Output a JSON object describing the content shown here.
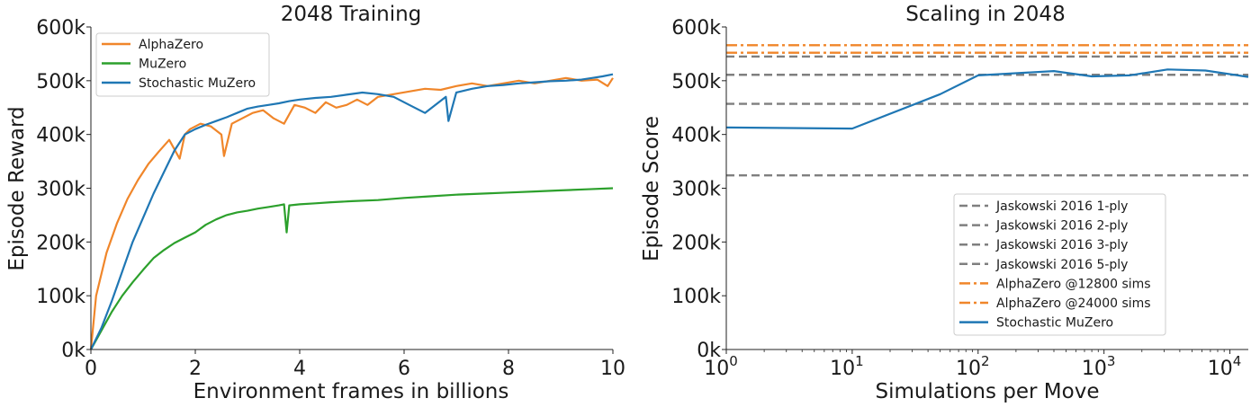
{
  "chart_data": [
    {
      "type": "line",
      "title": "2048 Training",
      "xlabel": "Environment frames in billions",
      "ylabel": "Episode Reward",
      "xlim": [
        0,
        10
      ],
      "ylim": [
        0,
        600000
      ],
      "xticks": [
        0,
        2,
        4,
        6,
        8,
        10
      ],
      "xtick_labels": [
        "0",
        "2",
        "4",
        "6",
        "8",
        "10"
      ],
      "yticks": [
        0,
        100000,
        200000,
        300000,
        400000,
        500000,
        600000
      ],
      "ytick_labels": [
        "0k",
        "100k",
        "200k",
        "300k",
        "400k",
        "500k",
        "600k"
      ],
      "legend": "top-left",
      "grid": false,
      "series": [
        {
          "name": "AlphaZero",
          "color": "#f0862a",
          "x": [
            0,
            0.1,
            0.2,
            0.3,
            0.5,
            0.7,
            0.9,
            1.1,
            1.3,
            1.5,
            1.7,
            1.8,
            1.9,
            2.1,
            2.3,
            2.5,
            2.55,
            2.7,
            2.9,
            3.1,
            3.3,
            3.5,
            3.7,
            3.9,
            4.1,
            4.3,
            4.5,
            4.7,
            4.9,
            5.1,
            5.3,
            5.5,
            5.8,
            6.1,
            6.4,
            6.7,
            7.0,
            7.3,
            7.6,
            7.9,
            8.2,
            8.5,
            8.8,
            9.1,
            9.4,
            9.7,
            9.9,
            10
          ],
          "y": [
            0,
            100000,
            140000,
            180000,
            235000,
            280000,
            315000,
            345000,
            368000,
            390000,
            355000,
            400000,
            410000,
            420000,
            415000,
            400000,
            360000,
            420000,
            430000,
            440000,
            445000,
            430000,
            420000,
            455000,
            450000,
            440000,
            460000,
            450000,
            455000,
            465000,
            455000,
            470000,
            475000,
            480000,
            485000,
            483000,
            490000,
            495000,
            490000,
            495000,
            500000,
            495000,
            500000,
            505000,
            500000,
            502000,
            490000,
            505000
          ]
        },
        {
          "name": "MuZero",
          "color": "#2ca02c",
          "x": [
            0,
            0.2,
            0.4,
            0.6,
            0.8,
            1.0,
            1.2,
            1.4,
            1.6,
            1.8,
            2.0,
            2.2,
            2.4,
            2.6,
            2.8,
            3.0,
            3.2,
            3.4,
            3.6,
            3.7,
            3.75,
            3.8,
            4.0,
            4.3,
            4.6,
            5.0,
            5.5,
            6.0,
            6.5,
            7.0,
            7.5,
            8.0,
            8.5,
            9.0,
            9.5,
            10
          ],
          "y": [
            0,
            35000,
            70000,
            100000,
            125000,
            148000,
            170000,
            185000,
            198000,
            208000,
            218000,
            232000,
            242000,
            250000,
            255000,
            258000,
            262000,
            265000,
            268000,
            270000,
            218000,
            268000,
            270000,
            272000,
            274000,
            276000,
            278000,
            282000,
            285000,
            288000,
            290000,
            292000,
            294000,
            296000,
            298000,
            300000
          ]
        },
        {
          "name": "Stochastic MuZero",
          "color": "#1f77b4",
          "x": [
            0,
            0.2,
            0.4,
            0.6,
            0.8,
            1.0,
            1.2,
            1.4,
            1.6,
            1.8,
            2.0,
            2.2,
            2.4,
            2.6,
            2.8,
            3.0,
            3.2,
            3.4,
            3.6,
            3.8,
            4.0,
            4.3,
            4.6,
            4.9,
            5.2,
            5.5,
            5.8,
            6.1,
            6.4,
            6.6,
            6.8,
            6.85,
            7.0,
            7.3,
            7.6,
            7.9,
            8.2,
            8.5,
            8.8,
            9.1,
            9.4,
            9.6,
            9.8,
            10
          ],
          "y": [
            0,
            40000,
            90000,
            145000,
            200000,
            245000,
            290000,
            330000,
            370000,
            400000,
            410000,
            418000,
            425000,
            432000,
            440000,
            448000,
            452000,
            455000,
            458000,
            462000,
            465000,
            468000,
            470000,
            474000,
            478000,
            475000,
            470000,
            455000,
            440000,
            455000,
            470000,
            425000,
            478000,
            485000,
            490000,
            492000,
            495000,
            497000,
            499000,
            500000,
            502000,
            505000,
            508000,
            512000
          ]
        }
      ]
    },
    {
      "type": "line",
      "title": "Scaling in 2048",
      "xlabel": "Simulations per Move",
      "ylabel": "Episode Score",
      "xscale": "log",
      "xlim": [
        1,
        14000
      ],
      "ylim": [
        0,
        600000
      ],
      "xticks": [
        1,
        10,
        100,
        1000,
        10000
      ],
      "xtick_base": [
        "10",
        "10",
        "10",
        "10",
        "10"
      ],
      "xtick_exp": [
        "0",
        "1",
        "2",
        "3",
        "4"
      ],
      "yticks": [
        0,
        100000,
        200000,
        300000,
        400000,
        500000,
        600000
      ],
      "ytick_labels": [
        "0k",
        "100k",
        "200k",
        "300k",
        "400k",
        "500k",
        "600k"
      ],
      "legend": "lower-right",
      "grid": false,
      "series": [
        {
          "name": "Jaskowski 2016 1-ply",
          "color": "#7f7f7f",
          "style": "dashed",
          "y": 324000
        },
        {
          "name": "Jaskowski 2016 2-ply",
          "color": "#7f7f7f",
          "style": "dashed",
          "y": 457000
        },
        {
          "name": "Jaskowski 2016 3-ply",
          "color": "#7f7f7f",
          "style": "dashed",
          "y": 511000
        },
        {
          "name": "Jaskowski 2016 5-ply",
          "color": "#7f7f7f",
          "style": "dashed",
          "y": 545000
        },
        {
          "name": "AlphaZero @12800 sims",
          "color": "#f0862a",
          "style": "dashdot",
          "y": 552000
        },
        {
          "name": "AlphaZero @24000 sims",
          "color": "#f0862a",
          "style": "dashdot",
          "y": 566000
        },
        {
          "name": "Stochastic MuZero",
          "color": "#1f77b4",
          "style": "solid",
          "x": [
            1,
            10,
            50,
            100,
            400,
            800,
            1600,
            3200,
            6400,
            14000
          ],
          "y": [
            413000,
            411000,
            475000,
            510000,
            518000,
            508000,
            510000,
            521000,
            519000,
            507000
          ]
        }
      ]
    }
  ]
}
